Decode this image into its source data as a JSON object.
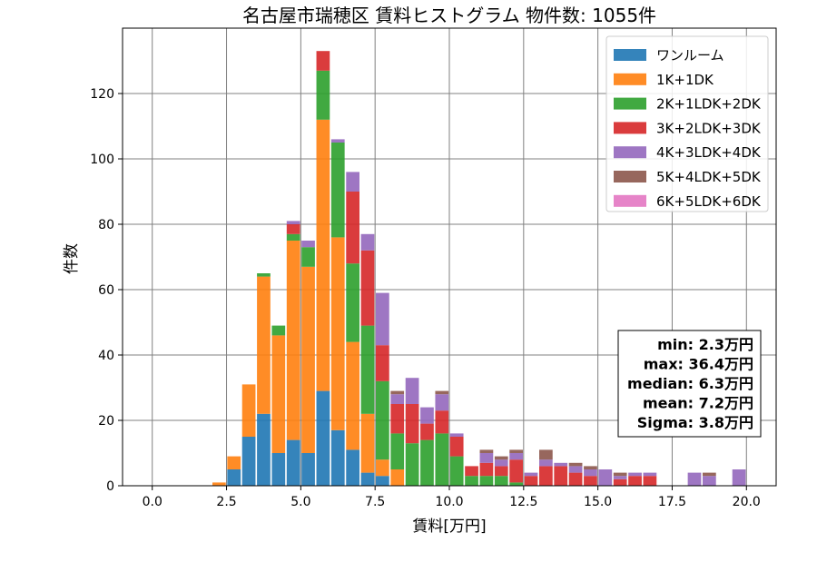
{
  "chart_data": {
    "type": "bar",
    "stacked": true,
    "title": "名古屋市瑞穂区 賃料ヒストグラム 物件数: 1055件",
    "xlabel": "賃料[万円]",
    "ylabel": "件数",
    "xlim": [
      -1.0,
      21.0
    ],
    "ylim": [
      0,
      140
    ],
    "x_ticks": [
      "0.0",
      "2.5",
      "5.0",
      "7.5",
      "10.0",
      "12.5",
      "15.0",
      "17.5",
      "20.0"
    ],
    "y_ticks": [
      "0",
      "20",
      "40",
      "60",
      "80",
      "100",
      "120"
    ],
    "grid": true,
    "legend_position": "top-right",
    "bin_width": 0.5,
    "x": [
      2.0,
      2.5,
      3.0,
      3.5,
      4.0,
      4.5,
      5.0,
      5.5,
      6.0,
      6.5,
      7.0,
      7.5,
      8.0,
      8.5,
      9.0,
      9.5,
      10.0,
      10.5,
      11.0,
      11.5,
      12.0,
      12.5,
      13.0,
      13.5,
      14.0,
      14.5,
      15.0,
      15.5,
      16.0,
      16.5,
      17.0,
      17.5,
      18.0,
      18.5,
      19.0,
      19.5
    ],
    "series": [
      {
        "name": "ワンルーム",
        "color": "#1f77b4",
        "values": [
          0,
          5,
          15,
          22,
          10,
          14,
          10,
          29,
          17,
          11,
          4,
          3,
          0,
          0,
          0,
          0,
          0,
          0,
          0,
          0,
          0,
          0,
          0,
          0,
          0,
          0,
          0,
          0,
          0,
          0,
          0,
          0,
          0,
          0,
          0,
          0
        ]
      },
      {
        "name": "1K+1DK",
        "color": "#ff7f0e",
        "values": [
          1,
          4,
          16,
          42,
          36,
          61,
          57,
          83,
          59,
          33,
          18,
          5,
          5,
          0,
          0,
          0,
          0,
          0,
          0,
          0,
          0,
          0,
          0,
          0,
          0,
          0,
          0,
          0,
          0,
          0,
          0,
          0,
          0,
          0,
          0,
          0
        ]
      },
      {
        "name": "2K+1LDK+2DK",
        "color": "#2ca02c",
        "values": [
          0,
          0,
          0,
          1,
          3,
          2,
          6,
          15,
          29,
          24,
          27,
          24,
          11,
          13,
          14,
          16,
          9,
          3,
          3,
          3,
          1,
          0,
          0,
          0,
          0,
          0,
          0,
          0,
          0,
          0,
          0,
          0,
          0,
          0,
          0,
          0
        ]
      },
      {
        "name": "3K+2LDK+3DK",
        "color": "#d62728",
        "values": [
          0,
          0,
          0,
          0,
          0,
          3,
          0,
          6,
          0,
          22,
          23,
          11,
          9,
          12,
          5,
          7,
          6,
          3,
          4,
          3,
          7,
          3,
          6,
          6,
          4,
          3,
          0,
          2,
          3,
          3,
          0,
          0,
          0,
          0,
          0,
          0
        ]
      },
      {
        "name": "4K+3LDK+4DK",
        "color": "#9467bd",
        "values": [
          0,
          0,
          0,
          0,
          0,
          1,
          2,
          0,
          1,
          6,
          5,
          16,
          3,
          8,
          5,
          5,
          1,
          0,
          3,
          2,
          2,
          1,
          2,
          1,
          2,
          2,
          5,
          1,
          1,
          1,
          0,
          0,
          4,
          3,
          0,
          5
        ]
      },
      {
        "name": "5K+4LDK+5DK",
        "color": "#8c564b",
        "values": [
          0,
          0,
          0,
          0,
          0,
          0,
          0,
          0,
          0,
          0,
          0,
          0,
          1,
          0,
          0,
          1,
          0,
          0,
          1,
          1,
          1,
          0,
          3,
          0,
          1,
          1,
          0,
          1,
          0,
          0,
          0,
          0,
          0,
          1,
          0,
          0
        ]
      },
      {
        "name": "6K+5LDK+6DK",
        "color": "#e377c2",
        "values": [
          0,
          0,
          0,
          0,
          0,
          0,
          0,
          0,
          0,
          0,
          0,
          0,
          0,
          0,
          0,
          0,
          0,
          0,
          0,
          0,
          0,
          0,
          0,
          0,
          0,
          0,
          0,
          0,
          0,
          0,
          0,
          0,
          0,
          0,
          0,
          0
        ]
      }
    ],
    "stats": [
      "min: 2.3万円",
      "max: 36.4万円",
      "median: 6.3万円",
      "mean: 7.2万円",
      "Sigma: 3.8万円"
    ]
  }
}
